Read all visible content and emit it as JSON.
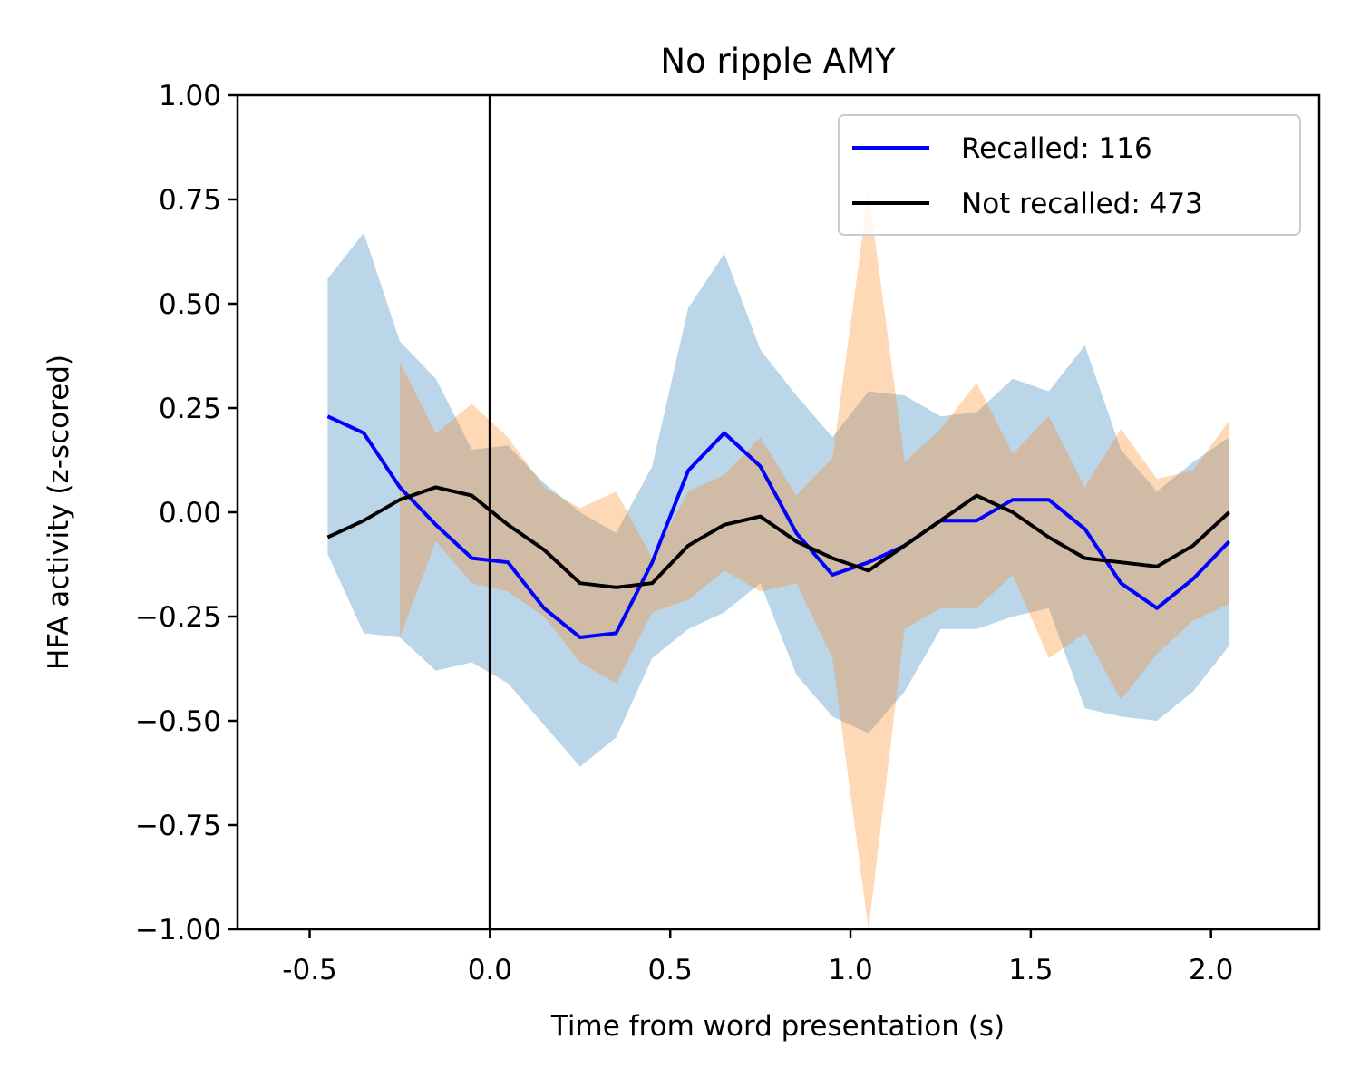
{
  "chart_data": {
    "type": "line",
    "title": "No ripple AMY",
    "xlabel": "Time from word presentation (s)",
    "ylabel": "HFA activity (z-scored)",
    "xlim": [
      -0.7,
      2.3
    ],
    "ylim": [
      -1.0,
      1.0
    ],
    "xticks": [
      -0.5,
      0.0,
      0.5,
      1.0,
      1.5,
      2.0
    ],
    "xtick_labels": [
      "-0.5",
      "0.0",
      "0.5",
      "1.0",
      "1.5",
      "2.0"
    ],
    "yticks": [
      1.0,
      0.75,
      0.5,
      0.25,
      0.0,
      -0.25,
      -0.5,
      -0.75,
      -1.0
    ],
    "ytick_labels": [
      "1.00",
      "0.75",
      "0.50",
      "0.25",
      "0.00",
      "−0.25",
      "−0.50",
      "−0.75",
      "−1.00"
    ],
    "vline_x": 0.0,
    "grid": false,
    "legend_position": "top-right",
    "series": [
      {
        "name": "Recalled: 116",
        "color": "#0000ff",
        "band_color": "#1f77b4",
        "x": [
          -0.45,
          -0.35,
          -0.25,
          -0.15,
          -0.05,
          0.05,
          0.15,
          0.25,
          0.35,
          0.45,
          0.55,
          0.65,
          0.75,
          0.85,
          0.95,
          1.05,
          1.15,
          1.25,
          1.35,
          1.45,
          1.55,
          1.65,
          1.75,
          1.85,
          1.95,
          2.05
        ],
        "values": [
          0.23,
          0.19,
          0.06,
          -0.03,
          -0.11,
          -0.12,
          -0.23,
          -0.3,
          -0.29,
          -0.12,
          0.1,
          0.19,
          0.11,
          -0.05,
          -0.15,
          -0.12,
          -0.08,
          -0.02,
          -0.02,
          0.03,
          0.03,
          -0.04,
          -0.17,
          -0.23,
          -0.16,
          -0.07
        ],
        "upper": [
          0.56,
          0.67,
          0.41,
          0.32,
          0.15,
          0.16,
          0.07,
          0.0,
          -0.05,
          0.11,
          0.49,
          0.62,
          0.39,
          0.28,
          0.18,
          0.29,
          0.28,
          0.23,
          0.24,
          0.32,
          0.29,
          0.4,
          0.15,
          0.05,
          0.12,
          0.18
        ],
        "lower": [
          -0.1,
          -0.29,
          -0.3,
          -0.38,
          -0.36,
          -0.41,
          -0.51,
          -0.61,
          -0.54,
          -0.35,
          -0.28,
          -0.24,
          -0.17,
          -0.39,
          -0.49,
          -0.53,
          -0.43,
          -0.28,
          -0.28,
          -0.25,
          -0.23,
          -0.47,
          -0.49,
          -0.5,
          -0.43,
          -0.32
        ]
      },
      {
        "name": "Not recalled: 473",
        "color": "#000000",
        "band_color": "#ff7f0e",
        "x": [
          -0.45,
          -0.35,
          -0.25,
          -0.15,
          -0.05,
          0.05,
          0.15,
          0.25,
          0.35,
          0.45,
          0.55,
          0.65,
          0.75,
          0.85,
          0.95,
          1.05,
          1.15,
          1.25,
          1.35,
          1.45,
          1.55,
          1.65,
          1.75,
          1.85,
          1.95,
          2.05
        ],
        "values": [
          -0.06,
          -0.02,
          0.03,
          0.06,
          0.04,
          -0.03,
          -0.09,
          -0.17,
          -0.18,
          -0.17,
          -0.08,
          -0.03,
          -0.01,
          -0.07,
          -0.11,
          -0.14,
          -0.08,
          -0.02,
          0.04,
          0.0,
          -0.06,
          -0.11,
          -0.12,
          -0.13,
          -0.08,
          0.0
        ],
        "upper": [
          null,
          null,
          0.36,
          0.19,
          0.26,
          0.18,
          0.06,
          0.01,
          0.05,
          -0.11,
          0.05,
          0.09,
          0.18,
          0.04,
          0.13,
          0.77,
          0.12,
          0.2,
          0.31,
          0.14,
          0.23,
          0.06,
          0.2,
          0.08,
          0.1,
          0.22
        ],
        "lower": [
          null,
          null,
          -0.3,
          -0.07,
          -0.17,
          -0.19,
          -0.25,
          -0.36,
          -0.41,
          -0.24,
          -0.21,
          -0.14,
          -0.19,
          -0.17,
          -0.35,
          -1.0,
          -0.28,
          -0.23,
          -0.23,
          -0.15,
          -0.35,
          -0.29,
          -0.45,
          -0.34,
          -0.26,
          -0.22
        ]
      }
    ]
  }
}
